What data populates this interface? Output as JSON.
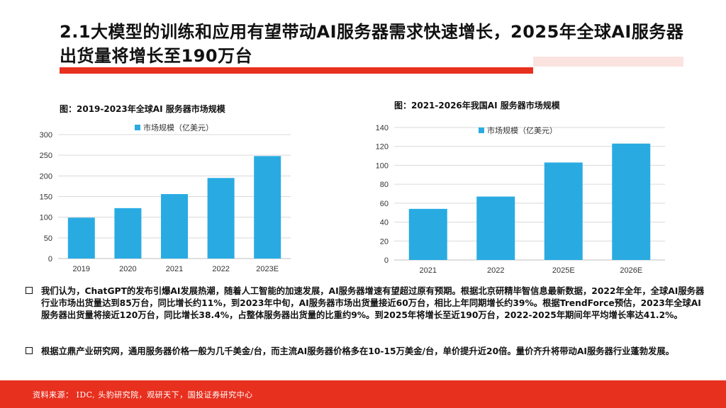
{
  "page": {
    "title": "2.1大模型的训练和应用有望带动AI服务器需求快速增长，2025年全球AI服务器出货量将增长至190万台",
    "footer": "资料来源： IDC, 头豹研究院，观研天下，国投证券研究中心"
  },
  "colors": {
    "accent": "#e8301f",
    "bar": "#29abe2",
    "grid": "#d9d9d9"
  },
  "chart_data": [
    {
      "type": "bar",
      "title": "图：2019-2023年全球AI 服务器市场规模",
      "categories": [
        "2019",
        "2020",
        "2021",
        "2022",
        "2023E"
      ],
      "series": [
        {
          "name": "市场规模（亿美元）",
          "values": [
            99,
            122,
            156,
            195,
            248
          ]
        }
      ],
      "ylim": [
        0,
        300
      ],
      "yticks": [
        0,
        50,
        100,
        150,
        200,
        250,
        300
      ],
      "grid": true,
      "legend": "top"
    },
    {
      "type": "bar",
      "title": "图：2021-2026年我国AI 服务器市场规模",
      "categories": [
        "2021",
        "2022",
        "2025E",
        "2026E"
      ],
      "series": [
        {
          "name": "市场规模（亿美元）",
          "values": [
            54,
            67,
            103,
            123
          ]
        }
      ],
      "ylim": [
        0,
        140
      ],
      "yticks": [
        0,
        20,
        40,
        60,
        80,
        100,
        120,
        140
      ],
      "grid": true,
      "legend": "top"
    }
  ],
  "paragraphs": [
    "我们认为，ChatGPT的发布引爆AI发展热潮，随着人工智能的加速发展，AI服务器增速有望超过原有预期。根据北京研精毕智信息最新数据，2022年全年，全球AI服务器行业市场出货量达到85万台，同比增长约11%，到2023年中旬，AI服务器市场出货量接近60万台，相比上年同期增长约39%。根据TrendForce预估，2023年全球AI服务器出货量将接近120万台，同比增长38.4%，占整体服务器出货量的比重约9%。到2025年将增长至近190万台，2022-2025年期间年平均增长率达41.2%。",
    "根据立鼎产业研究网，通用服务器价格一般为几千美金/台，而主流AI服务器价格多在10-15万美金/台，单价提升近20倍。量价齐升将带动AI服务器行业蓬勃发展。"
  ]
}
